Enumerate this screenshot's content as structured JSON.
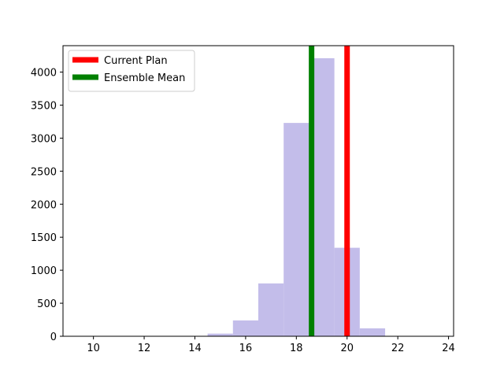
{
  "chart_data": {
    "type": "histogram",
    "title": "",
    "xlabel": "",
    "ylabel": "",
    "xlim": [
      8.8,
      24.2
    ],
    "ylim": [
      0,
      4400
    ],
    "x_ticks": [
      10,
      12,
      14,
      16,
      18,
      20,
      22,
      24
    ],
    "y_ticks": [
      0,
      500,
      1000,
      1500,
      2000,
      2500,
      3000,
      3500,
      4000
    ],
    "bar_color": "#c3bdea",
    "bins": [
      {
        "x0": 14.5,
        "x1": 15.5,
        "count": 40
      },
      {
        "x0": 15.5,
        "x1": 16.5,
        "count": 240
      },
      {
        "x0": 16.5,
        "x1": 17.5,
        "count": 800
      },
      {
        "x0": 17.5,
        "x1": 18.5,
        "count": 3230
      },
      {
        "x0": 18.5,
        "x1": 19.5,
        "count": 4210
      },
      {
        "x0": 19.5,
        "x1": 20.5,
        "count": 1340
      },
      {
        "x0": 20.5,
        "x1": 21.5,
        "count": 120
      }
    ],
    "vlines": [
      {
        "name": "Current Plan",
        "x": 20.0,
        "color": "#ff0000"
      },
      {
        "name": "Ensemble Mean",
        "x": 18.6,
        "color": "#008000"
      }
    ],
    "legend_position": "upper-left",
    "grid": false
  }
}
